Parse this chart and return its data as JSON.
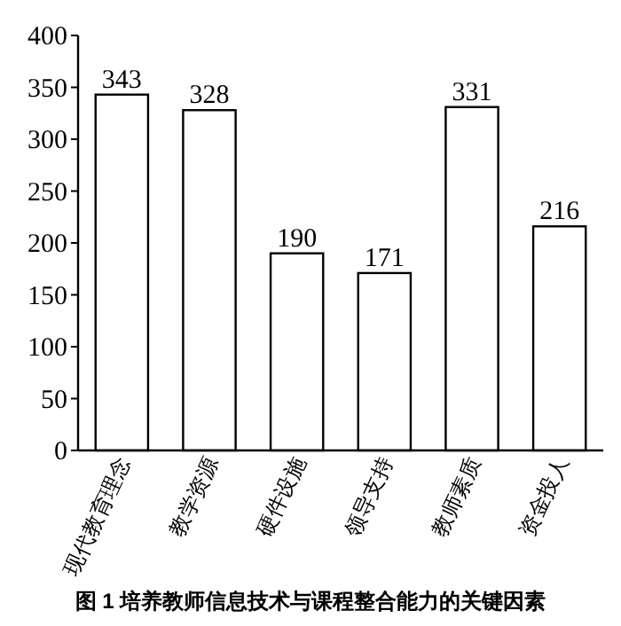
{
  "chart_data": {
    "type": "bar",
    "title": "图 1 培养教师信息技术与课程整合能力的关键因素",
    "categories": [
      "现代教育理念",
      "教学资源",
      "硬件设施",
      "领导支持",
      "教师素质",
      "资金投人"
    ],
    "values": [
      343,
      328,
      190,
      171,
      331,
      216
    ],
    "color": "#ffffff",
    "ylim": [
      0,
      400
    ],
    "yticks": [
      0,
      50,
      100,
      150,
      200,
      250,
      300,
      350,
      400
    ],
    "data_labels": true,
    "grid": false
  }
}
